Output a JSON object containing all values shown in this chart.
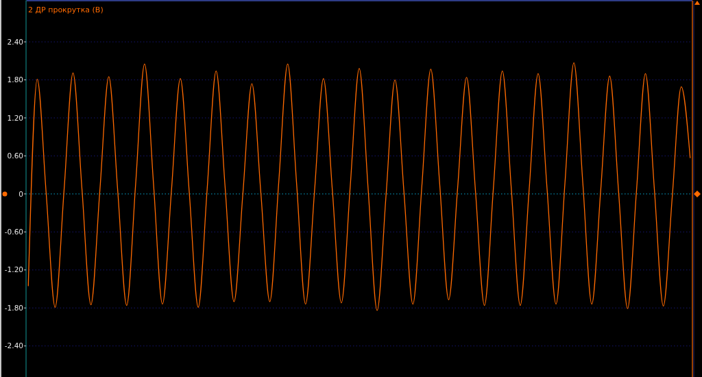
{
  "chart_data": {
    "type": "line",
    "title": "2 ДР прокрутка (В)",
    "categories": [
      null,
      null,
      null,
      null,
      null,
      null,
      null,
      null,
      null,
      null,
      null,
      null,
      null,
      null,
      null,
      null,
      null,
      null,
      null,
      null,
      null,
      null,
      null,
      null,
      null,
      null,
      null,
      null,
      null,
      null,
      null,
      null,
      null,
      null,
      null,
      null,
      null,
      null,
      null,
      null,
      null,
      null,
      null,
      null,
      null,
      null,
      null,
      null,
      null,
      null,
      null,
      null,
      null,
      null,
      null,
      null,
      null,
      null,
      null,
      null,
      null,
      null,
      null,
      null,
      null,
      null,
      null,
      null,
      null,
      null,
      null,
      null,
      null,
      null,
      null
    ],
    "series": [
      {
        "color": "#ff6a00",
        "values": [
          -1.45,
          1.81,
          0.01,
          -1.79,
          0.06,
          1.91,
          0.08,
          -1.75,
          0.05,
          1.85,
          0.05,
          -1.76,
          0.15,
          2.05,
          0.16,
          -1.74,
          0.04,
          1.82,
          0.02,
          -1.79,
          0.08,
          1.94,
          0.12,
          -1.7,
          0.02,
          1.74,
          0.02,
          -1.7,
          0.18,
          2.05,
          0.16,
          -1.74,
          0.04,
          1.82,
          0.05,
          -1.72,
          0.13,
          1.98,
          0.07,
          -1.84,
          -0.02,
          1.8,
          0.03,
          -1.74,
          0.12,
          1.97,
          0.15,
          -1.67,
          0.09,
          1.84,
          0.04,
          -1.76,
          0.09,
          1.94,
          0.09,
          -1.76,
          0.07,
          1.9,
          0.08,
          -1.74,
          0.17,
          2.07,
          0.17,
          -1.74,
          0.06,
          1.86,
          0.03,
          -1.81,
          0.05,
          1.9,
          0.07,
          -1.77,
          -0.04,
          1.69,
          0.57
        ]
      }
    ],
    "ylim": [
      -2.89,
      3.05
    ],
    "yticks": [
      {
        "value": -2.4,
        "label": "-2.40"
      },
      {
        "value": -1.8,
        "label": "-1.80"
      },
      {
        "value": -1.2,
        "label": "-1.20"
      },
      {
        "value": -0.6,
        "label": "-0.60"
      },
      0,
      {
        "value": 0.6,
        "label": "0.60"
      },
      {
        "value": 1.2,
        "label": "1.20"
      },
      {
        "value": 1.8,
        "label": "1.80"
      },
      {
        "value": 2.4,
        "label": "2.40"
      }
    ],
    "tick_labels": "y",
    "grid": "y",
    "ref_lines": [
      {
        "axis": "y",
        "value": 0,
        "color": "#008080",
        "line_style": "dotted"
      }
    ],
    "line_style": "solid"
  }
}
